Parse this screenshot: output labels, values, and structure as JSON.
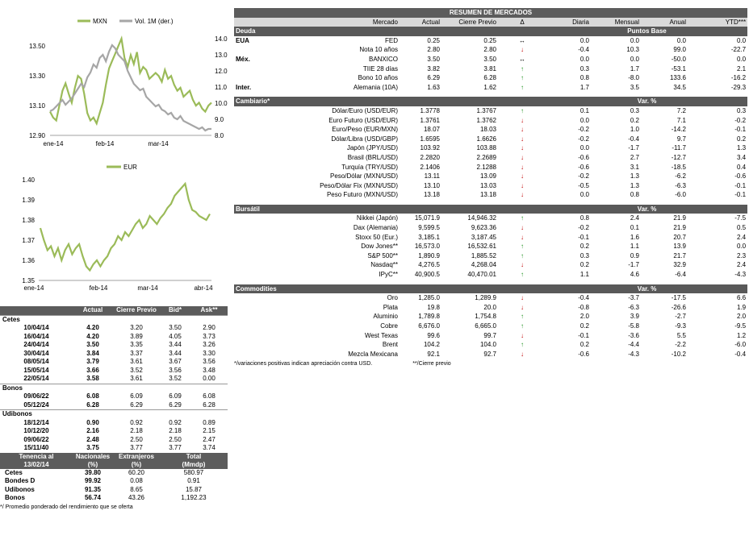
{
  "chart1": {
    "legend": [
      "MXN",
      "Vol. 1M (der.)"
    ],
    "colors": {
      "mxn": "#9bbb59",
      "vol": "#a6a6a6"
    },
    "left_ticks": [
      "13.50",
      "13.30",
      "13.10",
      "12.90"
    ],
    "right_ticks": [
      "14.0",
      "13.0",
      "12.0",
      "11.0",
      "10.0",
      "9.0",
      "8.0"
    ],
    "x_ticks": [
      "ene-14",
      "feb-14",
      "mar-14"
    ],
    "chart_data": {
      "type": "line",
      "ylim_left": [
        12.9,
        13.55
      ],
      "ylim_right": [
        8.0,
        14.0
      ],
      "series": [
        {
          "name": "MXN",
          "axis": "left",
          "values": [
            13.06,
            13.02,
            13.0,
            13.1,
            13.2,
            13.25,
            13.18,
            13.12,
            13.22,
            13.3,
            13.28,
            13.18,
            13.05,
            13.0,
            13.02,
            12.98,
            13.05,
            13.12,
            13.24,
            13.35,
            13.4,
            13.45,
            13.5,
            13.55,
            13.42,
            13.36,
            13.44,
            13.38,
            13.46,
            13.32,
            13.36,
            13.34,
            13.28,
            13.3,
            13.32,
            13.3,
            13.26,
            13.34,
            13.28,
            13.3,
            13.24,
            13.2,
            13.22,
            13.16,
            13.18,
            13.2,
            13.14,
            13.1,
            13.12,
            13.08,
            13.06,
            13.1,
            13.12
          ]
        },
        {
          "name": "Vol. 1M (der.)",
          "axis": "right",
          "values": [
            9.5,
            9.6,
            9.8,
            10.0,
            10.2,
            9.9,
            10.1,
            10.3,
            10.6,
            10.9,
            11.2,
            11.0,
            11.6,
            11.9,
            12.4,
            12.2,
            12.8,
            13.0,
            12.6,
            13.2,
            13.6,
            13.4,
            13.0,
            12.8,
            12.6,
            12.0,
            11.6,
            11.2,
            11.0,
            10.8,
            10.9,
            10.4,
            10.2,
            10.0,
            9.8,
            9.9,
            9.6,
            9.5,
            9.3,
            9.4,
            9.1,
            9.0,
            9.2,
            8.9,
            8.8,
            8.7,
            8.6,
            8.5,
            8.4,
            8.5,
            8.3,
            8.4,
            8.4
          ]
        }
      ]
    }
  },
  "chart2": {
    "legend": [
      "EUR"
    ],
    "colors": {
      "eur": "#9bbb59"
    },
    "y_ticks": [
      "1.40",
      "1.39",
      "1.38",
      "1.37",
      "1.36",
      "1.35"
    ],
    "x_ticks": [
      "ene-14",
      "feb-14",
      "mar-14",
      "abr-14"
    ],
    "chart_data": {
      "type": "line",
      "ylim": [
        1.35,
        1.4
      ],
      "series": [
        {
          "name": "EUR",
          "values": [
            1.376,
            1.37,
            1.365,
            1.367,
            1.362,
            1.366,
            1.36,
            1.365,
            1.368,
            1.363,
            1.366,
            1.368,
            1.362,
            1.357,
            1.355,
            1.358,
            1.36,
            1.357,
            1.36,
            1.362,
            1.366,
            1.368,
            1.372,
            1.37,
            1.374,
            1.372,
            1.375,
            1.378,
            1.38,
            1.376,
            1.378,
            1.382,
            1.38,
            1.378,
            1.381,
            1.383,
            1.386,
            1.388,
            1.392,
            1.394,
            1.396,
            1.398,
            1.39,
            1.385,
            1.384,
            1.382,
            1.381,
            1.38,
            1.383
          ]
        }
      ]
    }
  },
  "main": {
    "title": "RESUMEN DE MERCADOS",
    "columns": [
      "Mercado",
      "Actual",
      "Cierre Previo",
      "Δ",
      "Diaria",
      "Mensual",
      "Anual",
      "YTD***"
    ],
    "deuda": {
      "label": "Deuda",
      "unit": "Puntos Base",
      "rows": [
        {
          "grp": "EUA",
          "name": "FED",
          "actual": "0.25",
          "prev": "0.25",
          "dir": "eq",
          "d": "0.0",
          "m": "0.0",
          "a": "0.0",
          "y": "0.0"
        },
        {
          "grp": "",
          "name": "Nota 10 años",
          "actual": "2.80",
          "prev": "2.80",
          "dir": "dn",
          "d": "-0.4",
          "m": "10.3",
          "a": "99.0",
          "y": "-22.7"
        },
        {
          "grp": "Méx.",
          "name": "BANXICO",
          "actual": "3.50",
          "prev": "3.50",
          "dir": "eq",
          "d": "0.0",
          "m": "0.0",
          "a": "-50.0",
          "y": "0.0"
        },
        {
          "grp": "",
          "name": "TIIE 28 días",
          "actual": "3.82",
          "prev": "3.81",
          "dir": "up",
          "d": "0.3",
          "m": "1.7",
          "a": "-53.1",
          "y": "2.1"
        },
        {
          "grp": "",
          "name": "Bono 10 años",
          "actual": "6.29",
          "prev": "6.28",
          "dir": "up",
          "d": "0.8",
          "m": "-8.0",
          "a": "133.6",
          "y": "-16.2"
        },
        {
          "grp": "Inter.",
          "name": "Alemania (10A)",
          "actual": "1.63",
          "prev": "1.62",
          "dir": "up",
          "d": "1.7",
          "m": "3.5",
          "a": "34.5",
          "y": "-29.3"
        }
      ]
    },
    "cambiario": {
      "label": "Cambiario*",
      "unit": "Var. %",
      "rows": [
        {
          "name": "Dólar/Euro (USD/EUR)",
          "actual": "1.3778",
          "prev": "1.3767",
          "dir": "up",
          "d": "0.1",
          "m": "0.3",
          "a": "7.2",
          "y": "0.3"
        },
        {
          "name": "Euro Futuro (USD/EUR)",
          "actual": "1.3761",
          "prev": "1.3762",
          "dir": "dn",
          "d": "0.0",
          "m": "0.2",
          "a": "7.1",
          "y": "-0.2"
        },
        {
          "name": "Euro/Peso (EUR/MXN)",
          "actual": "18.07",
          "prev": "18.03",
          "dir": "dn",
          "d": "-0.2",
          "m": "1.0",
          "a": "-14.2",
          "y": "-0.1"
        },
        {
          "name": "Dólar/Libra (USD/GBP)",
          "actual": "1.6595",
          "prev": "1.6626",
          "dir": "dn",
          "d": "-0.2",
          "m": "-0.4",
          "a": "9.7",
          "y": "0.2"
        },
        {
          "name": "Japón (JPY/USD)",
          "actual": "103.92",
          "prev": "103.88",
          "dir": "dn",
          "d": "0.0",
          "m": "-1.7",
          "a": "-11.7",
          "y": "1.3"
        },
        {
          "name": "Brasil (BRL/USD)",
          "actual": "2.2820",
          "prev": "2.2689",
          "dir": "dn",
          "d": "-0.6",
          "m": "2.7",
          "a": "-12.7",
          "y": "3.4"
        },
        {
          "name": "Turquía (TRY/USD)",
          "actual": "2.1406",
          "prev": "2.1288",
          "dir": "dn",
          "d": "-0.6",
          "m": "3.1",
          "a": "-18.5",
          "y": "0.4"
        },
        {
          "name": "Peso/Dólar (MXN/USD)",
          "actual": "13.11",
          "prev": "13.09",
          "dir": "dn",
          "d": "-0.2",
          "m": "1.3",
          "a": "-6.2",
          "y": "-0.6"
        },
        {
          "name": "Peso/Dólar Fix (MXN/USD)",
          "actual": "13.10",
          "prev": "13.03",
          "dir": "dn",
          "d": "-0.5",
          "m": "1.3",
          "a": "-6.3",
          "y": "-0.1"
        },
        {
          "name": "Peso Futuro (MXN/USD)",
          "actual": "13.18",
          "prev": "13.18",
          "dir": "dn",
          "d": "0.0",
          "m": "0.8",
          "a": "-6.0",
          "y": "-0.1"
        }
      ]
    },
    "bursatil": {
      "label": "Bursátil",
      "unit": "Var. %",
      "rows": [
        {
          "name": "Nikkei (Japón)",
          "actual": "15,071.9",
          "prev": "14,946.32",
          "dir": "up",
          "d": "0.8",
          "m": "2.4",
          "a": "21.9",
          "y": "-7.5"
        },
        {
          "name": "Dax (Alemania)",
          "actual": "9,599.5",
          "prev": "9,623.36",
          "dir": "dn",
          "d": "-0.2",
          "m": "0.1",
          "a": "21.9",
          "y": "0.5"
        },
        {
          "name": "Stoxx 50 (Eur.)",
          "actual": "3,185.1",
          "prev": "3,187.45",
          "dir": "dn",
          "d": "-0.1",
          "m": "1.6",
          "a": "20.7",
          "y": "2.4"
        },
        {
          "name": "Dow Jones**",
          "actual": "16,573.0",
          "prev": "16,532.61",
          "dir": "up",
          "d": "0.2",
          "m": "1.1",
          "a": "13.9",
          "y": "0.0"
        },
        {
          "name": "S&P 500**",
          "actual": "1,890.9",
          "prev": "1,885.52",
          "dir": "up",
          "d": "0.3",
          "m": "0.9",
          "a": "21.7",
          "y": "2.3"
        },
        {
          "name": "Nasdaq**",
          "actual": "4,276.5",
          "prev": "4,268.04",
          "dir": "dn",
          "d": "0.2",
          "m": "-1.7",
          "a": "32.9",
          "y": "2.4"
        },
        {
          "name": "IPyC**",
          "actual": "40,900.5",
          "prev": "40,470.01",
          "dir": "up",
          "d": "1.1",
          "m": "4.6",
          "a": "-6.4",
          "y": "-4.3"
        }
      ]
    },
    "commodities": {
      "label": "Commodities",
      "unit": "Var. %",
      "rows": [
        {
          "name": "Oro",
          "actual": "1,285.0",
          "prev": "1,289.9",
          "dir": "dn",
          "d": "-0.4",
          "m": "-3.7",
          "a": "-17.5",
          "y": "6.6"
        },
        {
          "name": "Plata",
          "actual": "19.8",
          "prev": "20.0",
          "dir": "dn",
          "d": "-0.8",
          "m": "-6.3",
          "a": "-26.6",
          "y": "1.9"
        },
        {
          "name": "Aluminio",
          "actual": "1,789.8",
          "prev": "1,754.8",
          "dir": "up",
          "d": "2.0",
          "m": "3.9",
          "a": "-2.7",
          "y": "2.0"
        },
        {
          "name": "Cobre",
          "actual": "6,676.0",
          "prev": "6,665.0",
          "dir": "up",
          "d": "0.2",
          "m": "-5.8",
          "a": "-9.3",
          "y": "-9.5"
        },
        {
          "name": "West Texas",
          "actual": "99.6",
          "prev": "99.7",
          "dir": "dn",
          "d": "-0.1",
          "m": "-3.6",
          "a": "5.5",
          "y": "1.2"
        },
        {
          "name": "Brent",
          "actual": "104.2",
          "prev": "104.0",
          "dir": "up",
          "d": "0.2",
          "m": "-4.4",
          "a": "-2.2",
          "y": "-6.0"
        },
        {
          "name": "Mezcla Mexicana",
          "actual": "92.1",
          "prev": "92.7",
          "dir": "dn",
          "d": "-0.6",
          "m": "-4.3",
          "a": "-10.2",
          "y": "-0.4"
        }
      ]
    },
    "footnote1": "*/variaciones positivas indican apreciación contra USD.",
    "footnote2": "**/Cierre previo"
  },
  "left": {
    "columns": [
      "Actual",
      "Cierre Previo",
      "Bid*",
      "Ask**"
    ],
    "groups": [
      {
        "label": "Cetes",
        "rows": [
          [
            "10/04/14",
            "4.20",
            "3.20",
            "3.50",
            "2.90"
          ],
          [
            "16/04/14",
            "4.20",
            "3.89",
            "4.05",
            "3.73"
          ],
          [
            "24/04/14",
            "3.50",
            "3.35",
            "3.44",
            "3.26"
          ],
          [
            "30/04/14",
            "3.84",
            "3.37",
            "3.44",
            "3.30"
          ],
          [
            "08/05/14",
            "3.79",
            "3.61",
            "3.67",
            "3.56"
          ],
          [
            "15/05/14",
            "3.66",
            "3.52",
            "3.56",
            "3.48"
          ],
          [
            "22/05/14",
            "3.58",
            "3.61",
            "3.52",
            "0.00"
          ]
        ]
      },
      {
        "label": "Bonos",
        "rows": [
          [
            "09/06/22",
            "6.08",
            "6.09",
            "6.09",
            "6.08"
          ],
          [
            "05/12/24",
            "6.28",
            "6.29",
            "6.29",
            "6.28"
          ]
        ]
      },
      {
        "label": "Udibonos",
        "rows": [
          [
            "18/12/14",
            "0.90",
            "0.92",
            "0.92",
            "0.89"
          ],
          [
            "10/12/20",
            "2.16",
            "2.18",
            "2.18",
            "2.15"
          ],
          [
            "09/06/22",
            "2.48",
            "2.50",
            "2.50",
            "2.47"
          ],
          [
            "15/11/40",
            "3.75",
            "3.77",
            "3.77",
            "3.74"
          ]
        ]
      }
    ],
    "tenencia": {
      "h1": [
        "Tenencia al",
        "Nacionales",
        "Extranjeros",
        "Total"
      ],
      "h2": [
        "13/02/14",
        "(%)",
        "(%)",
        "(Mmdp)"
      ],
      "rows": [
        [
          "Cetes",
          "39.80",
          "60.20",
          "580.97"
        ],
        [
          "Bondes D",
          "99.92",
          "0.08",
          "0.91"
        ],
        [
          "Udibonos",
          "91.35",
          "8.65",
          "15.87"
        ],
        [
          "Bonos",
          "56.74",
          "43.26",
          "1,192.23"
        ]
      ]
    },
    "footnote": "*/ Promedio ponderado del rendimiento que se oferta"
  }
}
